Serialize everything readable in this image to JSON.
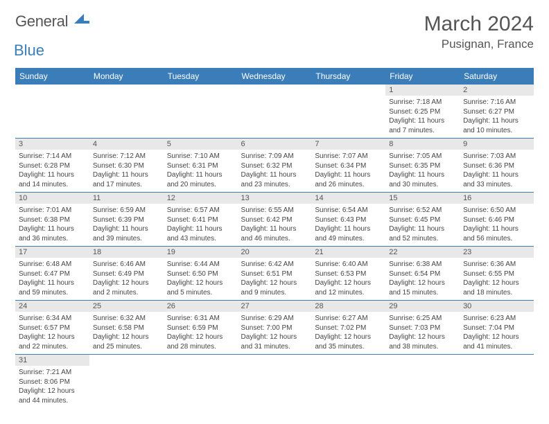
{
  "logo": {
    "general": "General",
    "blue": "Blue"
  },
  "title": "March 2024",
  "location": "Pusignan, France",
  "colors": {
    "accent": "#3a7db8",
    "dayHeaderBg": "#e8e8e8"
  },
  "weekdays": [
    "Sunday",
    "Monday",
    "Tuesday",
    "Wednesday",
    "Thursday",
    "Friday",
    "Saturday"
  ],
  "startOffset": 5,
  "days": [
    {
      "n": 1,
      "sunrise": "7:18 AM",
      "sunset": "6:25 PM",
      "daylight": "11 hours and 7 minutes."
    },
    {
      "n": 2,
      "sunrise": "7:16 AM",
      "sunset": "6:27 PM",
      "daylight": "11 hours and 10 minutes."
    },
    {
      "n": 3,
      "sunrise": "7:14 AM",
      "sunset": "6:28 PM",
      "daylight": "11 hours and 14 minutes."
    },
    {
      "n": 4,
      "sunrise": "7:12 AM",
      "sunset": "6:30 PM",
      "daylight": "11 hours and 17 minutes."
    },
    {
      "n": 5,
      "sunrise": "7:10 AM",
      "sunset": "6:31 PM",
      "daylight": "11 hours and 20 minutes."
    },
    {
      "n": 6,
      "sunrise": "7:09 AM",
      "sunset": "6:32 PM",
      "daylight": "11 hours and 23 minutes."
    },
    {
      "n": 7,
      "sunrise": "7:07 AM",
      "sunset": "6:34 PM",
      "daylight": "11 hours and 26 minutes."
    },
    {
      "n": 8,
      "sunrise": "7:05 AM",
      "sunset": "6:35 PM",
      "daylight": "11 hours and 30 minutes."
    },
    {
      "n": 9,
      "sunrise": "7:03 AM",
      "sunset": "6:36 PM",
      "daylight": "11 hours and 33 minutes."
    },
    {
      "n": 10,
      "sunrise": "7:01 AM",
      "sunset": "6:38 PM",
      "daylight": "11 hours and 36 minutes."
    },
    {
      "n": 11,
      "sunrise": "6:59 AM",
      "sunset": "6:39 PM",
      "daylight": "11 hours and 39 minutes."
    },
    {
      "n": 12,
      "sunrise": "6:57 AM",
      "sunset": "6:41 PM",
      "daylight": "11 hours and 43 minutes."
    },
    {
      "n": 13,
      "sunrise": "6:55 AM",
      "sunset": "6:42 PM",
      "daylight": "11 hours and 46 minutes."
    },
    {
      "n": 14,
      "sunrise": "6:54 AM",
      "sunset": "6:43 PM",
      "daylight": "11 hours and 49 minutes."
    },
    {
      "n": 15,
      "sunrise": "6:52 AM",
      "sunset": "6:45 PM",
      "daylight": "11 hours and 52 minutes."
    },
    {
      "n": 16,
      "sunrise": "6:50 AM",
      "sunset": "6:46 PM",
      "daylight": "11 hours and 56 minutes."
    },
    {
      "n": 17,
      "sunrise": "6:48 AM",
      "sunset": "6:47 PM",
      "daylight": "11 hours and 59 minutes."
    },
    {
      "n": 18,
      "sunrise": "6:46 AM",
      "sunset": "6:49 PM",
      "daylight": "12 hours and 2 minutes."
    },
    {
      "n": 19,
      "sunrise": "6:44 AM",
      "sunset": "6:50 PM",
      "daylight": "12 hours and 5 minutes."
    },
    {
      "n": 20,
      "sunrise": "6:42 AM",
      "sunset": "6:51 PM",
      "daylight": "12 hours and 9 minutes."
    },
    {
      "n": 21,
      "sunrise": "6:40 AM",
      "sunset": "6:53 PM",
      "daylight": "12 hours and 12 minutes."
    },
    {
      "n": 22,
      "sunrise": "6:38 AM",
      "sunset": "6:54 PM",
      "daylight": "12 hours and 15 minutes."
    },
    {
      "n": 23,
      "sunrise": "6:36 AM",
      "sunset": "6:55 PM",
      "daylight": "12 hours and 18 minutes."
    },
    {
      "n": 24,
      "sunrise": "6:34 AM",
      "sunset": "6:57 PM",
      "daylight": "12 hours and 22 minutes."
    },
    {
      "n": 25,
      "sunrise": "6:32 AM",
      "sunset": "6:58 PM",
      "daylight": "12 hours and 25 minutes."
    },
    {
      "n": 26,
      "sunrise": "6:31 AM",
      "sunset": "6:59 PM",
      "daylight": "12 hours and 28 minutes."
    },
    {
      "n": 27,
      "sunrise": "6:29 AM",
      "sunset": "7:00 PM",
      "daylight": "12 hours and 31 minutes."
    },
    {
      "n": 28,
      "sunrise": "6:27 AM",
      "sunset": "7:02 PM",
      "daylight": "12 hours and 35 minutes."
    },
    {
      "n": 29,
      "sunrise": "6:25 AM",
      "sunset": "7:03 PM",
      "daylight": "12 hours and 38 minutes."
    },
    {
      "n": 30,
      "sunrise": "6:23 AM",
      "sunset": "7:04 PM",
      "daylight": "12 hours and 41 minutes."
    },
    {
      "n": 31,
      "sunrise": "7:21 AM",
      "sunset": "8:06 PM",
      "daylight": "12 hours and 44 minutes."
    }
  ],
  "labels": {
    "sunrise": "Sunrise:",
    "sunset": "Sunset:",
    "daylight": "Daylight:"
  }
}
